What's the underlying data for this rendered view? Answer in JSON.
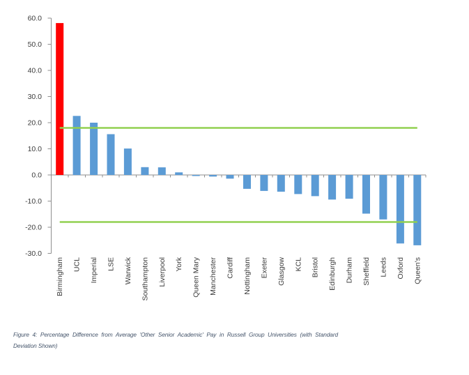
{
  "figure": {
    "caption_line1": "Figure 4: Percentage Difference from Average 'Other Senior Academic' Pay in Russell Group Universities (with Standard",
    "caption_line2": "Deviation Shown)"
  },
  "chart_data": {
    "type": "bar",
    "title": "",
    "xlabel": "",
    "ylabel": "",
    "categories": [
      "Birmingham",
      "UCL",
      "Imperial",
      "LSE",
      "Warwick",
      "Southampton",
      "Liverpool",
      "York",
      "Queen Mary",
      "Manchester",
      "Cardiff",
      "Nottingham",
      "Exeter",
      "Glasgow",
      "KCL",
      "Bristol",
      "Edinburgh",
      "Durham",
      "Sheffield",
      "Leeds",
      "Oxford",
      "Queen's"
    ],
    "values": [
      58.1,
      22.6,
      20.0,
      15.6,
      10.1,
      3.0,
      2.9,
      1.0,
      -0.4,
      -0.6,
      -1.4,
      -5.3,
      -6.1,
      -6.4,
      -7.3,
      -8.1,
      -9.4,
      -9.1,
      -14.8,
      -17.0,
      -26.2,
      -26.9
    ],
    "highlight_category": "Birmingham",
    "sd_lines": [
      18.0,
      -18.0
    ],
    "ylim": [
      -30,
      60
    ],
    "ytick_step": 10,
    "ytick_decimals": 1,
    "grid": "off",
    "legend": "none",
    "colors": {
      "bar": "#5B9BD5",
      "highlight": "#FF0000",
      "sd_line": "#92D050",
      "axis": "#8E8E8E",
      "tick_label": "#3B3B3B",
      "caption": "#44546A"
    }
  }
}
